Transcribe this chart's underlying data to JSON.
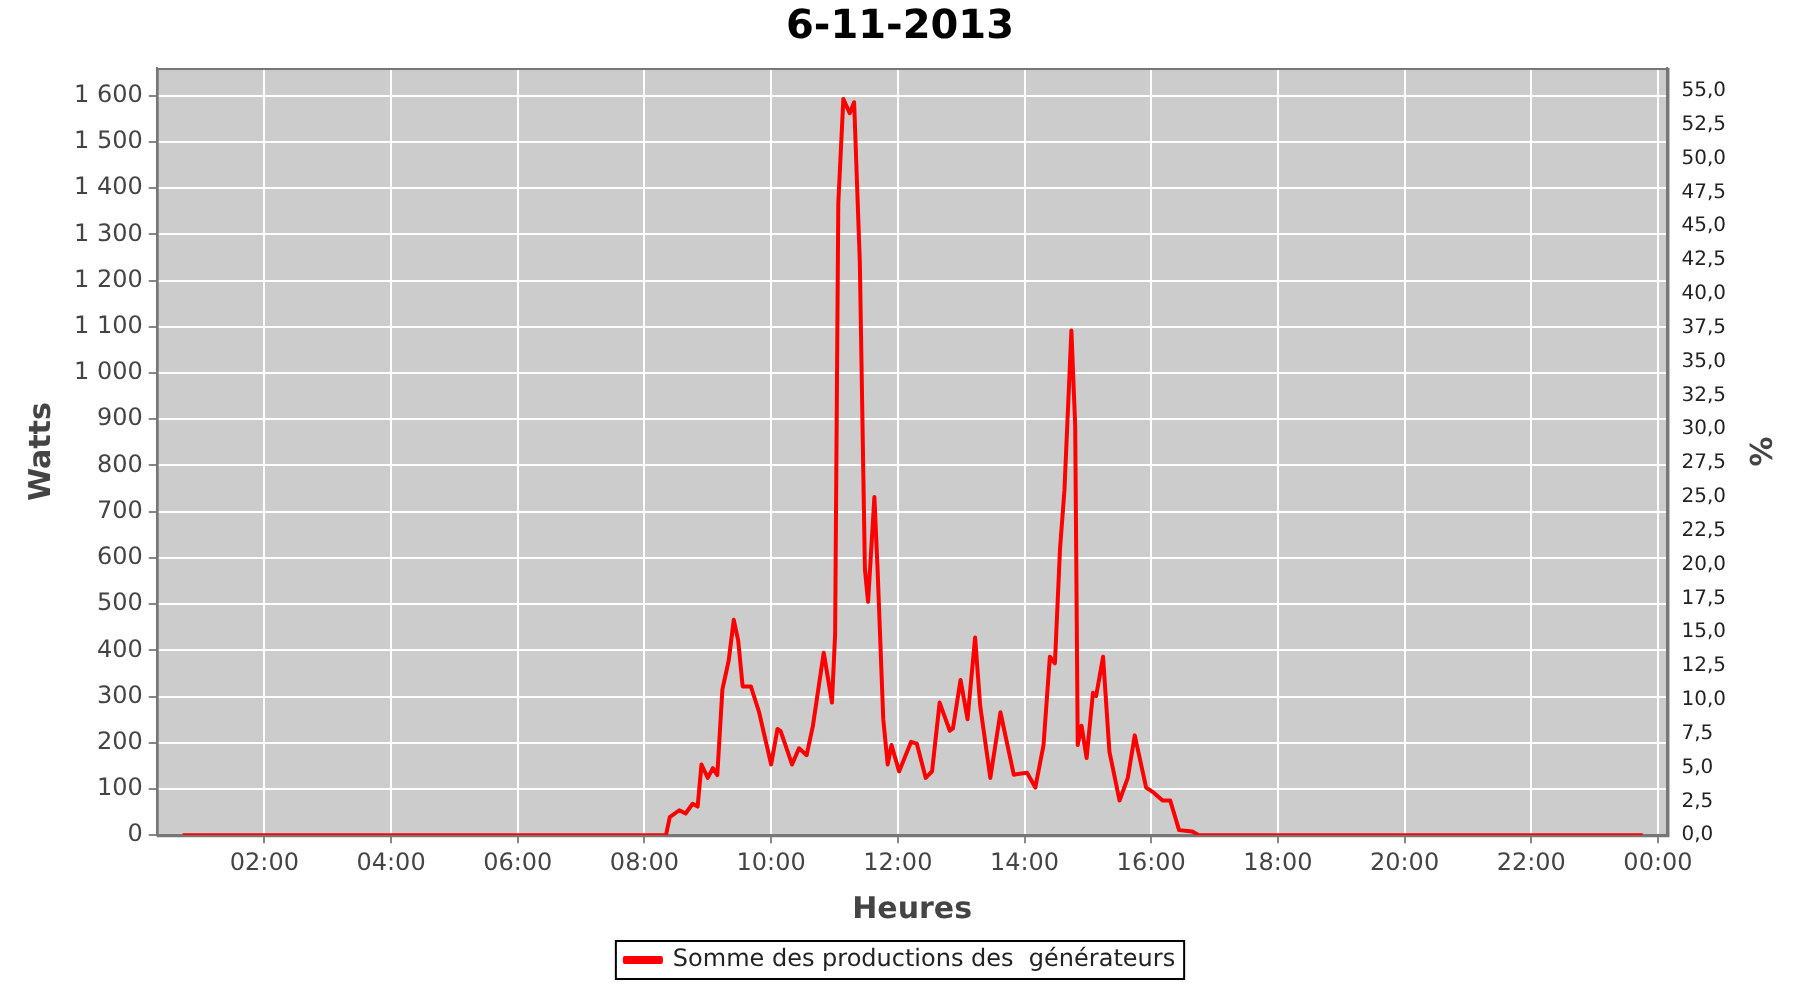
{
  "chart_data": {
    "type": "line",
    "title": "6-11-2013",
    "xlabel": "Heures",
    "ylabel": "Watts",
    "y2label": "%",
    "x": [
      0.71,
      8.3,
      8.34,
      8.4,
      8.55,
      8.65,
      8.76,
      8.84,
      8.9,
      9.0,
      9.08,
      9.15,
      9.23,
      9.33,
      9.41,
      9.48,
      9.55,
      9.68,
      9.81,
      10.0,
      10.1,
      10.15,
      10.33,
      10.44,
      10.56,
      10.66,
      10.83,
      10.96,
      11.01,
      11.06,
      11.14,
      11.24,
      11.31,
      11.4,
      11.48,
      11.53,
      11.63,
      11.68,
      11.77,
      11.84,
      11.9,
      12.02,
      12.21,
      12.3,
      12.44,
      12.54,
      12.66,
      12.82,
      12.87,
      12.99,
      13.1,
      13.22,
      13.3,
      13.46,
      13.62,
      13.83,
      14.04,
      14.17,
      14.3,
      14.4,
      14.48,
      14.56,
      14.63,
      14.74,
      14.8,
      14.84,
      14.9,
      14.98,
      15.08,
      15.13,
      15.24,
      15.34,
      15.5,
      15.63,
      15.74,
      15.92,
      16.04,
      16.18,
      16.3,
      16.44,
      16.65,
      16.75,
      23.76
    ],
    "series": [
      {
        "name": "Somme des productions des  générateurs",
        "color": "#ff0000",
        "values": [
          0,
          0,
          0,
          39,
          54,
          47,
          68,
          62,
          153,
          124,
          145,
          130,
          315,
          378,
          466,
          421,
          322,
          322,
          266,
          153,
          230,
          225,
          153,
          188,
          173,
          237,
          395,
          287,
          435,
          1367,
          1593,
          1562,
          1586,
          1240,
          576,
          505,
          732,
          576,
          251,
          153,
          195,
          138,
          202,
          198,
          124,
          138,
          287,
          226,
          231,
          336,
          251,
          428,
          280,
          124,
          266,
          131,
          135,
          103,
          195,
          386,
          372,
          619,
          746,
          1092,
          886,
          195,
          237,
          167,
          308,
          301,
          386,
          181,
          75,
          124,
          216,
          103,
          92,
          75,
          75,
          11,
          8,
          0,
          0
        ]
      }
    ],
    "xlim": [
      0.3,
      24.15
    ],
    "xticks": [
      {
        "value": 2,
        "label": "02:00"
      },
      {
        "value": 4,
        "label": "04:00"
      },
      {
        "value": 6,
        "label": "06:00"
      },
      {
        "value": 8,
        "label": "08:00"
      },
      {
        "value": 10,
        "label": "10:00"
      },
      {
        "value": 12,
        "label": "12:00"
      },
      {
        "value": 14,
        "label": "14:00"
      },
      {
        "value": 16,
        "label": "16:00"
      },
      {
        "value": 18,
        "label": "18:00"
      },
      {
        "value": 20,
        "label": "20:00"
      },
      {
        "value": 22,
        "label": "22:00"
      },
      {
        "value": 24,
        "label": "00:00"
      }
    ],
    "ylim": [
      0,
      1660
    ],
    "yticks": [
      0,
      100,
      200,
      300,
      400,
      500,
      600,
      700,
      800,
      900,
      {
        "value": 1000,
        "label": "1 000"
      },
      {
        "value": 1100,
        "label": "1 100"
      },
      {
        "value": 1200,
        "label": "1 200"
      },
      {
        "value": 1300,
        "label": "1 300"
      },
      {
        "value": 1400,
        "label": "1 400"
      },
      {
        "value": 1500,
        "label": "1 500"
      },
      {
        "value": 1600,
        "label": "1 600"
      }
    ],
    "y2lim": [
      0,
      56.7
    ],
    "y2ticks": [
      {
        "value": 0,
        "label": "0,0"
      },
      {
        "value": 2.5,
        "label": "2,5"
      },
      {
        "value": 5,
        "label": "5,0"
      },
      {
        "value": 7.5,
        "label": "7,5"
      },
      {
        "value": 10,
        "label": "10,0"
      },
      {
        "value": 12.5,
        "label": "12,5"
      },
      {
        "value": 15,
        "label": "15,0"
      },
      {
        "value": 17.5,
        "label": "17,5"
      },
      {
        "value": 20,
        "label": "20,0"
      },
      {
        "value": 22.5,
        "label": "22,5"
      },
      {
        "value": 25,
        "label": "25,0"
      },
      {
        "value": 27.5,
        "label": "27,5"
      },
      {
        "value": 30,
        "label": "30,0"
      },
      {
        "value": 32.5,
        "label": "32,5"
      },
      {
        "value": 35,
        "label": "35,0"
      },
      {
        "value": 37.5,
        "label": "37,5"
      },
      {
        "value": 40,
        "label": "40,0"
      },
      {
        "value": 42.5,
        "label": "42,5"
      },
      {
        "value": 45,
        "label": "45,0"
      },
      {
        "value": 47.5,
        "label": "47,5"
      },
      {
        "value": 50,
        "label": "50,0"
      },
      {
        "value": 52.5,
        "label": "52,5"
      },
      {
        "value": 55,
        "label": "55,0"
      }
    ],
    "grid": true,
    "legend": "bottom",
    "marker": "none",
    "line_style": "solid"
  }
}
